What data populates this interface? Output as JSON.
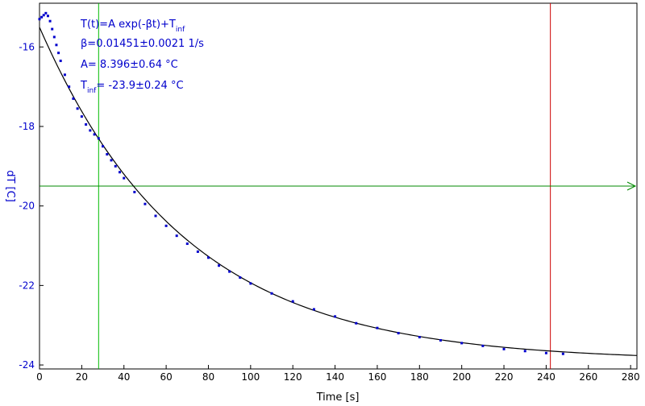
{
  "chart_data": {
    "type": "scatter",
    "xlabel": "Time [s]",
    "ylabel": "dT [C]",
    "xlim": [
      0,
      283
    ],
    "ylim": [
      -24.1,
      -14.9
    ],
    "xticks": [
      0,
      20,
      40,
      60,
      80,
      100,
      120,
      140,
      160,
      180,
      200,
      220,
      240,
      260,
      280
    ],
    "yticks": [
      -16,
      -18,
      -20,
      -22,
      -24
    ],
    "grid": false,
    "colors": {
      "data": "#0000cc",
      "fit": "#000000",
      "cursor_green": "#00bb00",
      "cursor_red": "#cc0000",
      "axis_text": "#0000cc"
    },
    "cursors": {
      "vertical_green_x": 28,
      "vertical_red_x": 242,
      "horizontal_y": -19.5
    },
    "annotations": {
      "model_main": "T(t)=A exp(-βt)+T",
      "model_sub": "inf",
      "beta": "β=0.01451±0.0021 1/s",
      "amp": "A= 8.396±0.64 °C",
      "tinf_T": "T",
      "tinf_sub": "inf",
      "tinf_rest": "= -23.9±0.24 °C"
    },
    "series": [
      {
        "kind": "markers",
        "x": [
          0,
          1,
          2,
          3,
          4,
          5,
          6,
          7,
          8,
          9,
          10,
          12,
          14,
          16,
          18,
          20,
          22,
          24,
          26,
          28,
          30,
          32,
          34,
          36,
          38,
          40,
          45,
          50,
          55,
          60,
          65,
          70,
          75,
          80,
          85,
          90,
          95,
          100,
          110,
          120,
          130,
          140,
          150,
          160,
          170,
          180,
          190,
          200,
          210,
          220,
          230,
          240,
          248
        ],
        "y": [
          -15.3,
          -15.25,
          -15.2,
          -15.15,
          -15.22,
          -15.35,
          -15.55,
          -15.75,
          -15.95,
          -16.15,
          -16.35,
          -16.7,
          -17.0,
          -17.3,
          -17.55,
          -17.75,
          -17.95,
          -18.1,
          -18.2,
          -18.3,
          -18.5,
          -18.7,
          -18.85,
          -19.0,
          -19.15,
          -19.3,
          -19.65,
          -19.95,
          -20.25,
          -20.5,
          -20.75,
          -20.95,
          -21.15,
          -21.3,
          -21.5,
          -21.65,
          -21.8,
          -21.95,
          -22.2,
          -22.4,
          -22.6,
          -22.78,
          -22.95,
          -23.07,
          -23.2,
          -23.3,
          -23.38,
          -23.45,
          -23.52,
          -23.6,
          -23.65,
          -23.7,
          -23.72
        ]
      },
      {
        "kind": "fit",
        "A": 8.396,
        "beta": 0.01451,
        "Tinf": -23.9,
        "x_range": [
          0,
          283
        ]
      }
    ]
  }
}
